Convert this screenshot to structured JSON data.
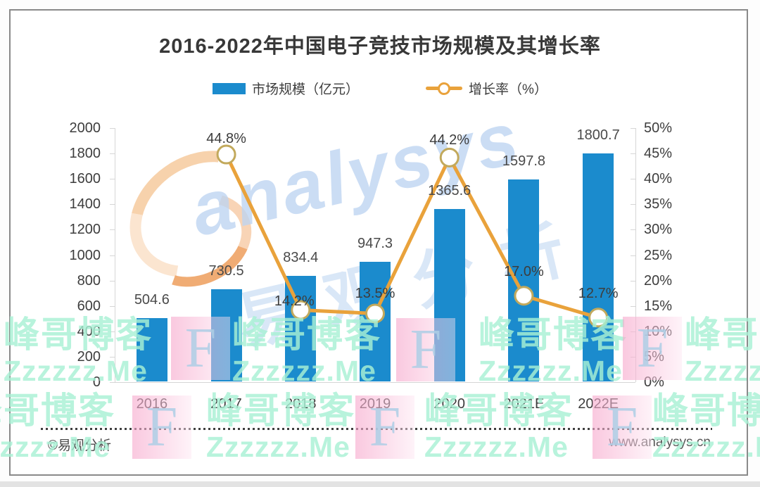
{
  "footer": {
    "left": "©易观分析",
    "right": "www.analysys.cn"
  },
  "legend": {
    "bar_label": "市场规模（亿元）",
    "line_label": "增长率（%）"
  },
  "watermarks": {
    "brand_text": "analysys",
    "brand_cjk": "易观分析",
    "tile_line1": "峰哥博客",
    "tile_line2": "Zzzzzz.Me",
    "tile_letter": "F"
  },
  "chart_data": {
    "type": "bar+line",
    "title": "2016-2022年中国电子竞技市场规模及其增长率",
    "categories": [
      "2016",
      "2017",
      "2018",
      "2019",
      "2020",
      "2021E",
      "2022E"
    ],
    "series": [
      {
        "name": "市场规模（亿元）",
        "type": "bar",
        "axis": "left",
        "color": "#1b8bcd",
        "values": [
          504.6,
          730.5,
          834.4,
          947.3,
          1365.6,
          1597.8,
          1800.7
        ],
        "labels": [
          "504.6",
          "730.5",
          "834.4",
          "947.3",
          "1365.6",
          "1597.8",
          "1800.7"
        ]
      },
      {
        "name": "增长率（%）",
        "type": "line",
        "axis": "right",
        "color": "#e9a23b",
        "marker": "open-circle",
        "values": [
          null,
          44.8,
          14.2,
          13.5,
          44.2,
          17.0,
          12.7
        ],
        "labels": [
          "",
          "44.8%",
          "14.2%",
          "13.5%",
          "44.2%",
          "17.0%",
          "12.7%"
        ]
      }
    ],
    "left_axis": {
      "min": 0,
      "max": 2000,
      "step": 200,
      "ticks": [
        0,
        200,
        400,
        600,
        800,
        1000,
        1200,
        1400,
        1600,
        1800,
        2000
      ]
    },
    "right_axis": {
      "min": 0,
      "max": 50,
      "step": 5,
      "ticks": [
        "0%",
        "5%",
        "10%",
        "15%",
        "20%",
        "25%",
        "30%",
        "35%",
        "40%",
        "45%",
        "50%"
      ]
    },
    "grid": false,
    "legend_position": "top"
  }
}
